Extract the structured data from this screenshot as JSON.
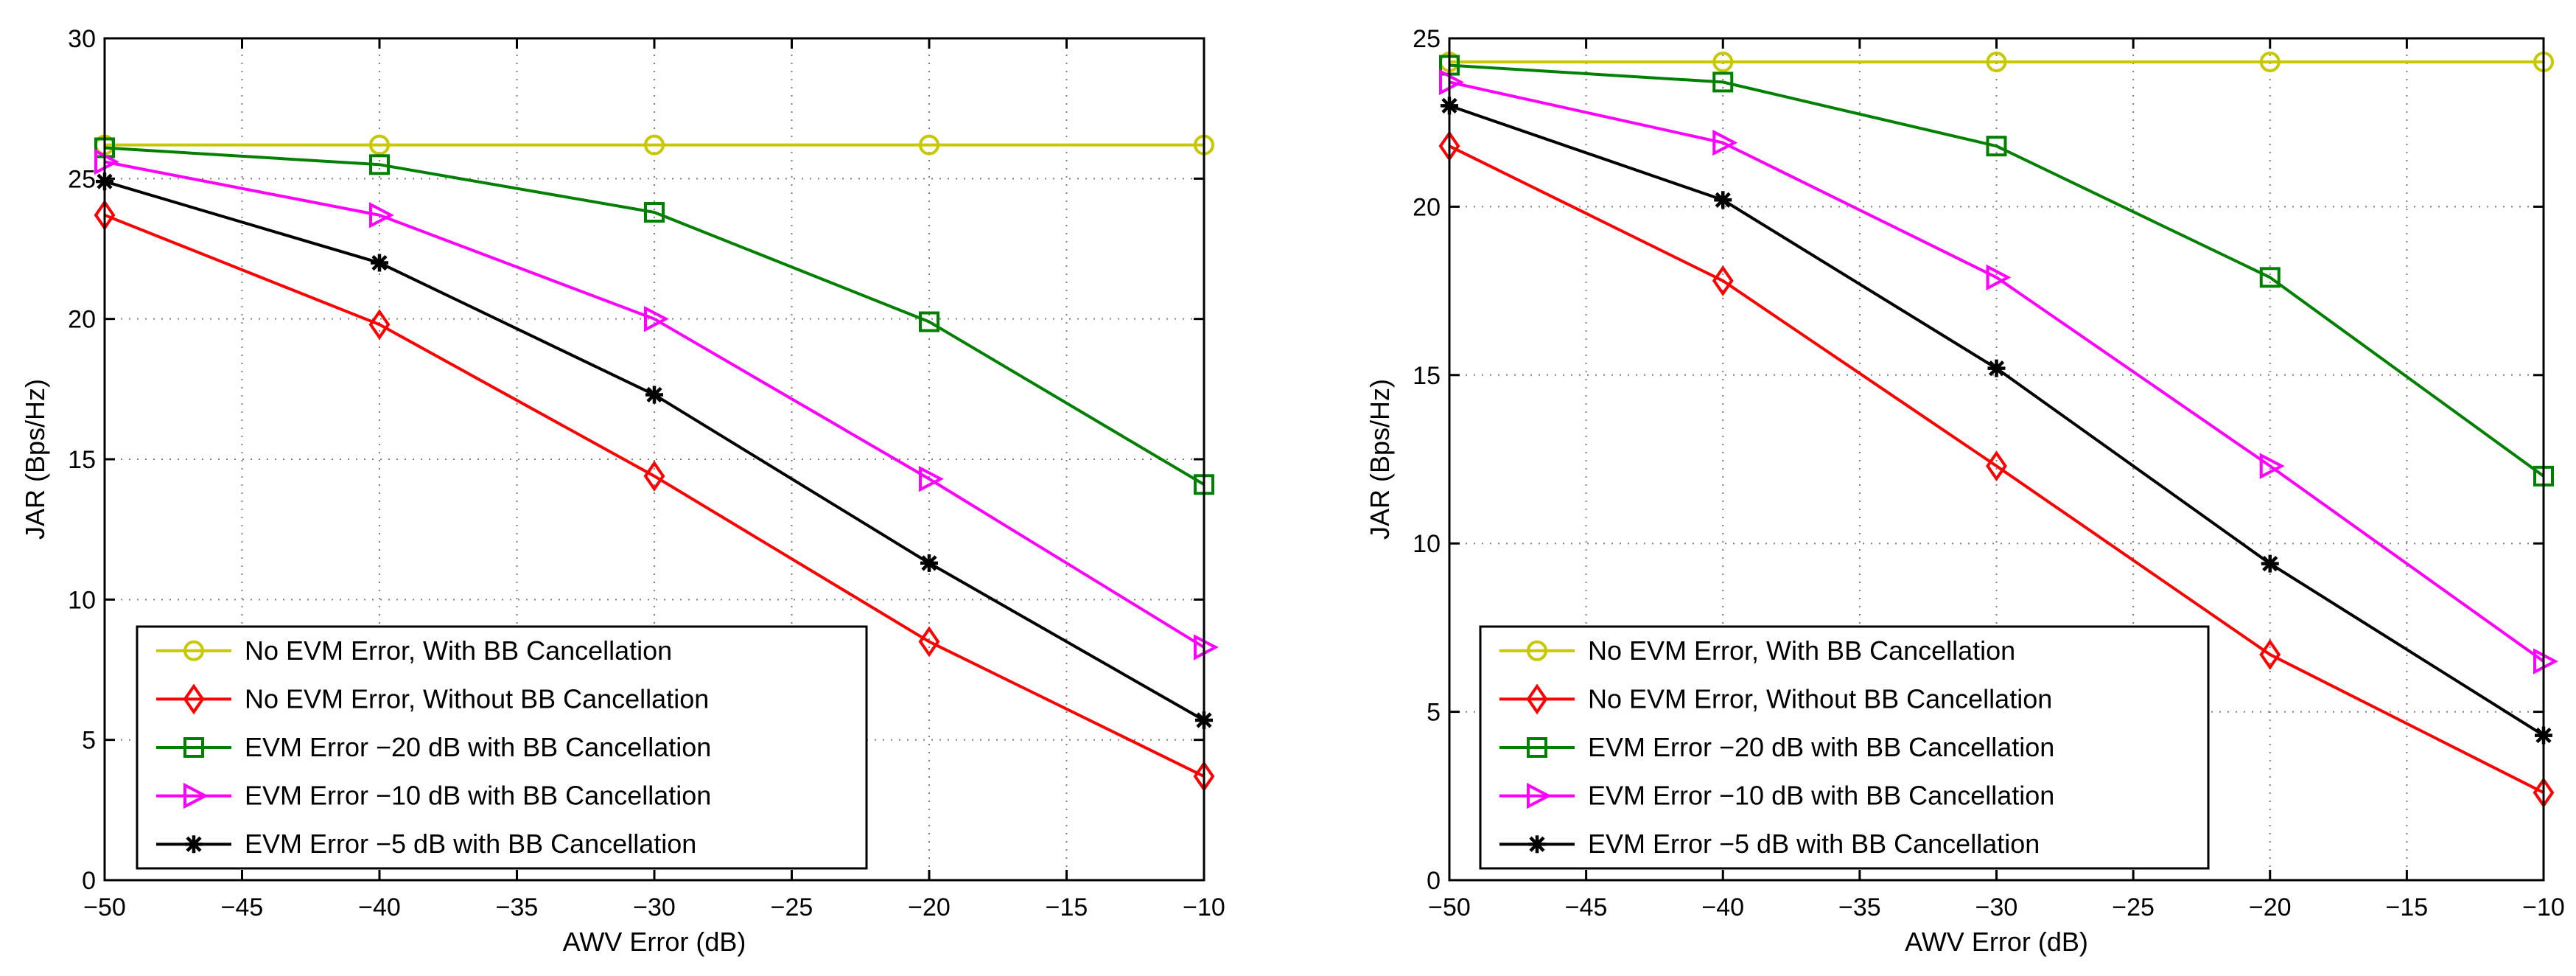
{
  "colors": {
    "no_evm_with_bb": "#c8c800",
    "no_evm_without_bb": "#ff0000",
    "evm_20": "#008000",
    "evm_10": "#ff00ff",
    "evm_5": "#000000",
    "grid": "#7f7f7f",
    "axes": "#000000"
  },
  "chart_data": [
    {
      "type": "line",
      "title": "",
      "xlabel": "AWV Error (dB)",
      "ylabel": "JAR (Bps/Hz)",
      "xlim": [
        -50,
        -10
      ],
      "ylim": [
        0,
        30
      ],
      "xticks": [
        -50,
        -45,
        -40,
        -35,
        -30,
        -25,
        -20,
        -15,
        -10
      ],
      "yticks": [
        0,
        5,
        10,
        15,
        20,
        25,
        30
      ],
      "grid": true,
      "legend_position": "bottom-left",
      "x": [
        -50,
        -40,
        -30,
        -20,
        -10
      ],
      "series": [
        {
          "name": "No EVM Error, With BB Cancellation",
          "color_key": "no_evm_with_bb",
          "marker": "circle",
          "values": [
            26.2,
            26.2,
            26.2,
            26.2,
            26.2
          ]
        },
        {
          "name": "No EVM Error, Without BB Cancellation",
          "color_key": "no_evm_without_bb",
          "marker": "diamond",
          "values": [
            23.7,
            19.8,
            14.4,
            8.5,
            3.7
          ]
        },
        {
          "name": "EVM Error −20 dB with BB Cancellation",
          "color_key": "evm_20",
          "marker": "square",
          "values": [
            26.1,
            25.5,
            23.8,
            19.9,
            14.1
          ]
        },
        {
          "name": "EVM Error −10 dB with BB Cancellation",
          "color_key": "evm_10",
          "marker": "triangle-right",
          "values": [
            25.6,
            23.7,
            20.0,
            14.3,
            8.3
          ]
        },
        {
          "name": "EVM Error −5 dB with BB Cancellation",
          "color_key": "evm_5",
          "marker": "asterisk",
          "values": [
            24.9,
            22.0,
            17.3,
            11.3,
            5.7
          ]
        }
      ]
    },
    {
      "type": "line",
      "title": "",
      "xlabel": "AWV Error (dB)",
      "ylabel": "JAR (Bps/Hz)",
      "xlim": [
        -50,
        -10
      ],
      "ylim": [
        0,
        25
      ],
      "xticks": [
        -50,
        -45,
        -40,
        -35,
        -30,
        -25,
        -20,
        -15,
        -10
      ],
      "yticks": [
        0,
        5,
        10,
        15,
        20,
        25
      ],
      "grid": true,
      "legend_position": "bottom-left",
      "x": [
        -50,
        -40,
        -30,
        -20,
        -10
      ],
      "series": [
        {
          "name": "No EVM Error, With BB Cancellation",
          "color_key": "no_evm_with_bb",
          "marker": "circle",
          "values": [
            24.3,
            24.3,
            24.3,
            24.3,
            24.3
          ]
        },
        {
          "name": "No EVM Error, Without BB Cancellation",
          "color_key": "no_evm_without_bb",
          "marker": "diamond",
          "values": [
            21.8,
            17.8,
            12.3,
            6.7,
            2.6
          ]
        },
        {
          "name": "EVM Error −20 dB with BB Cancellation",
          "color_key": "evm_20",
          "marker": "square",
          "values": [
            24.2,
            23.7,
            21.8,
            17.9,
            12.0
          ]
        },
        {
          "name": "EVM Error −10 dB with BB Cancellation",
          "color_key": "evm_10",
          "marker": "triangle-right",
          "values": [
            23.7,
            21.9,
            17.9,
            12.3,
            6.5
          ]
        },
        {
          "name": "EVM Error −5 dB with BB Cancellation",
          "color_key": "evm_5",
          "marker": "asterisk",
          "values": [
            23.0,
            20.2,
            15.2,
            9.4,
            4.3
          ]
        }
      ]
    }
  ]
}
